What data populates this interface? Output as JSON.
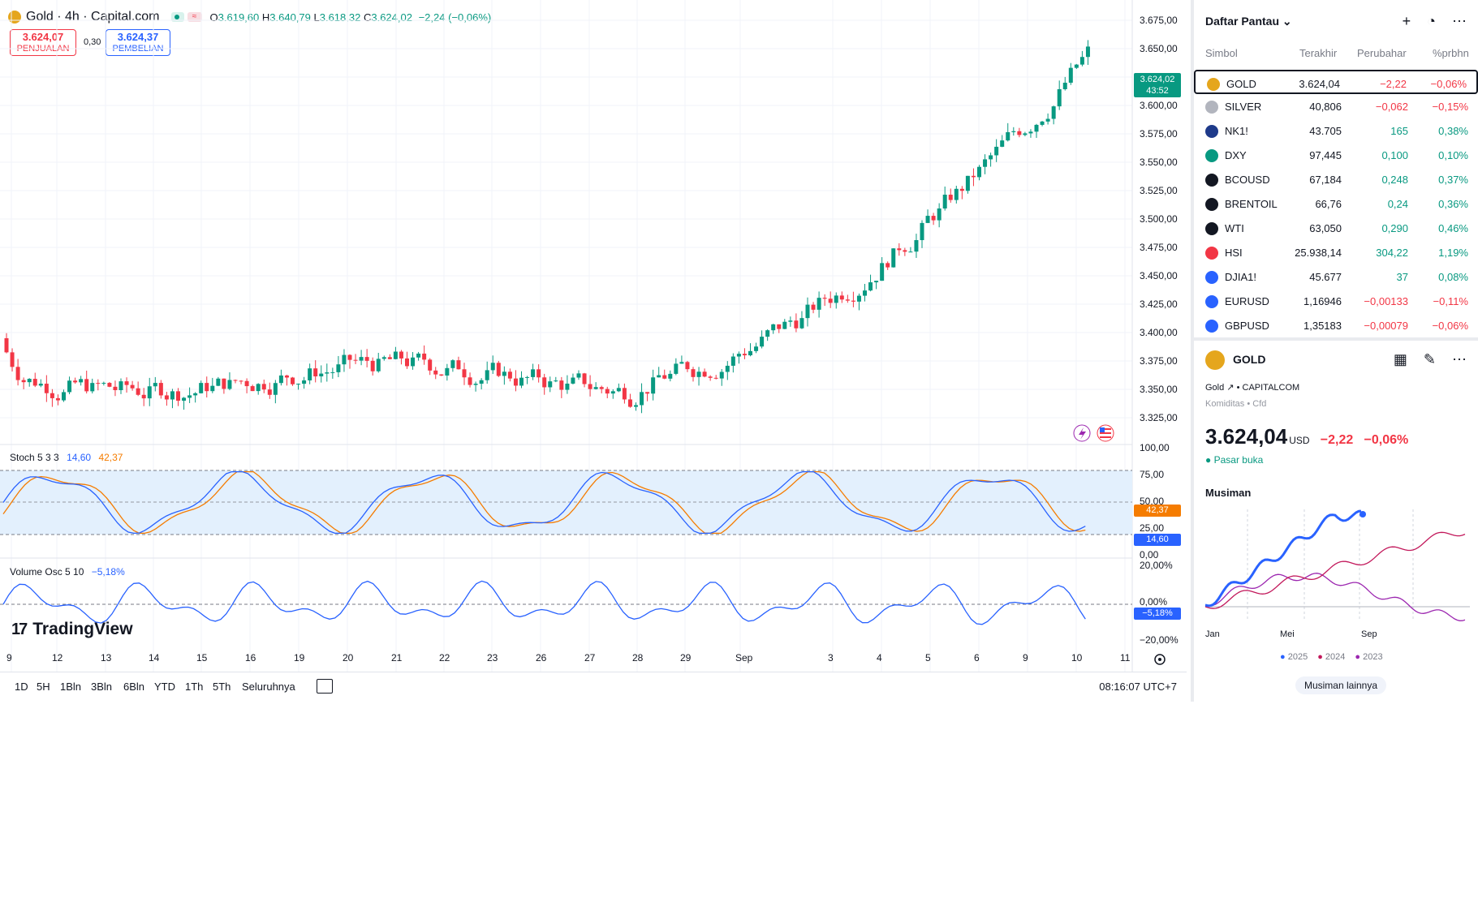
{
  "header": {
    "symbol_title": "Gold · 4h · Capital.com",
    "open_label": "O",
    "open": "3.619,60",
    "high_label": "H",
    "high": "3.640,79",
    "low_label": "L",
    "low": "3.618,32",
    "close_label": "C",
    "close": "3.624,02",
    "change": "−2,24 (−0,06%)",
    "pill2_glyph": "≈"
  },
  "trade": {
    "sell_price": "3.624,07",
    "sell_label": "PENJUALAN",
    "spread": "0,30",
    "buy_price": "3.624,37",
    "buy_label": "PEMBELIAN"
  },
  "price_axis": [
    "3.675,00",
    "3.650,00",
    "3.625,00",
    "3.600,00",
    "3.575,00",
    "3.550,00",
    "3.525,00",
    "3.500,00",
    "3.475,00",
    "3.450,00",
    "3.425,00",
    "3.400,00",
    "3.375,00",
    "3.350,00",
    "3.325,00"
  ],
  "current_price_tag": {
    "price": "3.624,02",
    "countdown": "43:52",
    "color": "#089981"
  },
  "stoch": {
    "label": "Stoch 5 3 3",
    "k": "14,60",
    "d": "42,37",
    "axis": [
      "100,00",
      "75,00",
      "50,00",
      "25,00",
      "0,00"
    ],
    "k_tag": "14,60",
    "d_tag": "42,37",
    "k_color": "#2962ff",
    "d_color": "#f57c00"
  },
  "volosc": {
    "label": "Volume Osc 5 10",
    "value": "−5,18%",
    "axis": [
      "20,00%",
      "0,00%",
      "−20,00%"
    ],
    "tag": "−5,18%"
  },
  "date_axis": [
    "9",
    "12",
    "13",
    "14",
    "15",
    "16",
    "19",
    "20",
    "21",
    "22",
    "23",
    "26",
    "27",
    "28",
    "29",
    "Sep",
    "3",
    "4",
    "5",
    "6",
    "9",
    "10",
    "11"
  ],
  "brand": "TradingView",
  "ranges": [
    "1D",
    "5H",
    "1Bln",
    "3Bln",
    "6Bln",
    "YTD",
    "1Th",
    "5Th",
    "Seluruhnya"
  ],
  "clock": "08:16:07 UTC+7",
  "watchlist": {
    "title": "Daftar Pantau",
    "columns": {
      "symbol": "Simbol",
      "last": "Terakhir",
      "change": "Perubahar",
      "pct": "%prbhn"
    },
    "rows": [
      {
        "symbol": "GOLD",
        "last": "3.624,04",
        "change": "−2,22",
        "pct": "−0,06%",
        "dir": "dn",
        "icon": "#e5a61d",
        "selected": true
      },
      {
        "symbol": "SILVER",
        "last": "40,806",
        "change": "−0,062",
        "pct": "−0,15%",
        "dir": "dn",
        "icon": "#b2b5be"
      },
      {
        "symbol": "NK1!",
        "last": "43.705",
        "change": "165",
        "pct": "0,38%",
        "dir": "up",
        "icon": "#1e3a8a"
      },
      {
        "symbol": "DXY",
        "last": "97,445",
        "change": "0,100",
        "pct": "0,10%",
        "dir": "up",
        "icon": "#089981"
      },
      {
        "symbol": "BCOUSD",
        "last": "67,184",
        "change": "0,248",
        "pct": "0,37%",
        "dir": "up",
        "icon": "#131722"
      },
      {
        "symbol": "BRENTOIL",
        "last": "66,76",
        "change": "0,24",
        "pct": "0,36%",
        "dir": "up",
        "icon": "#131722"
      },
      {
        "symbol": "WTI",
        "last": "63,050",
        "change": "0,290",
        "pct": "0,46%",
        "dir": "up",
        "icon": "#131722"
      },
      {
        "symbol": "HSI",
        "last": "25.938,14",
        "change": "304,22",
        "pct": "1,19%",
        "dir": "up",
        "icon": "#f23645"
      },
      {
        "symbol": "DJIA1!",
        "last": "45.677",
        "change": "37",
        "pct": "0,08%",
        "dir": "up",
        "icon": "#2962ff"
      },
      {
        "symbol": "EURUSD",
        "last": "1,16946",
        "change": "−0,00133",
        "pct": "−0,11%",
        "dir": "dn",
        "icon": "#2962ff"
      },
      {
        "symbol": "GBPUSD",
        "last": "1,35183",
        "change": "−0,00079",
        "pct": "−0,06%",
        "dir": "dn",
        "icon": "#2962ff"
      }
    ]
  },
  "detail": {
    "symbol": "GOLD",
    "name": "Gold",
    "exchange": "CAPITALCOM",
    "category": "Komiditas",
    "type": "Cfd",
    "price": "3.624,04",
    "currency": "USD",
    "change": "−2,22",
    "pct": "−0,06%",
    "status": "Pasar buka",
    "seasonal_title": "Musiman",
    "seasonal_x": [
      "Jan",
      "Mei",
      "Sep"
    ],
    "legend": [
      {
        "name": "2025",
        "color": "#2962ff"
      },
      {
        "name": "2024",
        "color": "#c2185b"
      },
      {
        "name": "2023",
        "color": "#9c27b0"
      }
    ],
    "more": "Musiman lainnya"
  }
}
